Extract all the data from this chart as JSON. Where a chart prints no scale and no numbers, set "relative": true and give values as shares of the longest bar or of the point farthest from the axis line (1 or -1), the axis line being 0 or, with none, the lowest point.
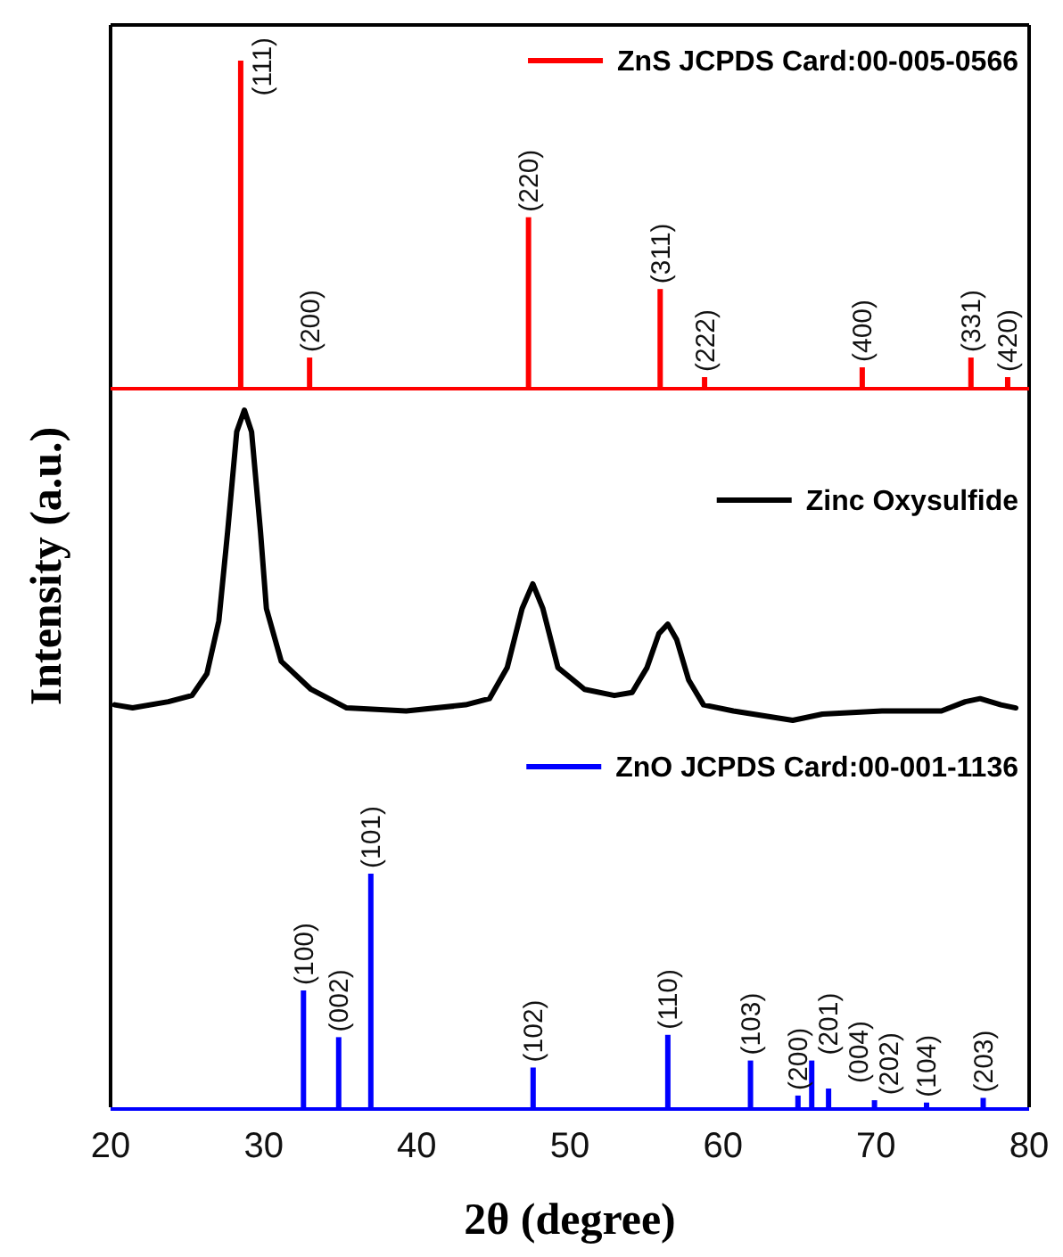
{
  "chart_data": [
    {
      "type": "bar",
      "relative": true,
      "xlim": [
        20,
        80
      ],
      "tick_labels": false,
      "legend": "top right",
      "x": [
        28.5,
        33.0,
        47.3,
        55.9,
        58.8,
        69.1,
        76.2,
        78.6
      ],
      "series": [
        {
          "name": "ZnS JCPDS Card:00-005-0566",
          "color": "#ff0000",
          "values": [
            1,
            0.09,
            0.52,
            0.3,
            0.03,
            0.06,
            0.09,
            0.03
          ]
        }
      ],
      "annotations": [
        {
          "text": "(111)",
          "x": 28.5,
          "y": 1
        },
        {
          "text": "(200)",
          "x": 33.0,
          "y": 0.09
        },
        {
          "text": "(220)",
          "x": 47.3,
          "y": 0.52
        },
        {
          "text": "(311)",
          "x": 55.9,
          "y": 0.3
        },
        {
          "text": "(222)",
          "x": 58.8,
          "y": 0.03
        },
        {
          "text": "(400)",
          "x": 69.1,
          "y": 0.06
        },
        {
          "text": "(331)",
          "x": 76.2,
          "y": 0.09
        },
        {
          "text": "(420)",
          "x": 78.6,
          "y": 0.03
        }
      ]
    },
    {
      "type": "line",
      "relative": true,
      "xlim": [
        20,
        80
      ],
      "tick_labels": false,
      "legend": "right",
      "ylabel": "Intensity (a.u.)",
      "series": [
        {
          "name": "Zinc Oxysulfide",
          "color": "#000000",
          "x": [
            20.27,
            21.44,
            23.77,
            25.32,
            26.29,
            27.07,
            27.65,
            28.24,
            28.74,
            29.21,
            29.79,
            30.18,
            31.15,
            33.09,
            35.42,
            39.31,
            43.19,
            44.75,
            45.91,
            46.88,
            47.58,
            48.24,
            49.22,
            50.96,
            52.91,
            54.07,
            55.04,
            55.82,
            56.4,
            56.98,
            57.76,
            58.73,
            60.68,
            64.56,
            66.5,
            70.39,
            74.27,
            75.83,
            76.8,
            78.16,
            79.13
          ],
          "values": [
            0.05,
            0.04,
            0.06,
            0.08,
            0.15,
            0.32,
            0.61,
            0.93,
            1,
            0.93,
            0.61,
            0.36,
            0.19,
            0.1,
            0.04,
            0.03,
            0.05,
            0.07,
            0.17,
            0.36,
            0.44,
            0.36,
            0.17,
            0.1,
            0.08,
            0.09,
            0.17,
            0.28,
            0.31,
            0.26,
            0.13,
            0.05,
            0.03,
            0,
            0.02,
            0.03,
            0.03,
            0.06,
            0.07,
            0.05,
            0.04
          ]
        }
      ]
    },
    {
      "type": "bar",
      "relative": true,
      "xlim": [
        20,
        80
      ],
      "xticks": [
        20,
        30,
        40,
        50,
        60,
        70,
        80
      ],
      "tick_labels": "x",
      "legend": "top right",
      "xlabel": "2θ (degree)",
      "x": [
        32.6,
        34.9,
        37.0,
        47.6,
        56.4,
        61.8,
        64.9,
        65.8,
        66.9,
        69.9,
        73.3,
        77.0
      ],
      "series": [
        {
          "name": "ZnO JCPDS Card:00-001-1136",
          "color": "#0000ff",
          "values": [
            0.5,
            0.3,
            1,
            0.17,
            0.31,
            0.2,
            0.05,
            0.2,
            0.08,
            0.03,
            0.02,
            0.04
          ]
        }
      ],
      "annotations": [
        {
          "text": "(100)",
          "x": 32.6,
          "y": 0.5
        },
        {
          "text": "(002)",
          "x": 34.9,
          "y": 0.3
        },
        {
          "text": "(101)",
          "x": 37.0,
          "y": 1
        },
        {
          "text": "(102)",
          "x": 47.6,
          "y": 0.17
        },
        {
          "text": "(110)",
          "x": 56.4,
          "y": 0.31
        },
        {
          "text": "(103)",
          "x": 61.8,
          "y": 0.2
        },
        {
          "text": "(200)",
          "x": 64.9,
          "y": 0.05
        },
        {
          "text": "(201)",
          "x": 65.8,
          "y": 0.2
        },
        {
          "text": "(004)",
          "x": 66.9,
          "y": 0.08
        },
        {
          "text": "(202)",
          "x": 69.9,
          "y": 0.03
        },
        {
          "text": "(104)",
          "x": 73.3,
          "y": 0.02
        },
        {
          "text": "(203)",
          "x": 77.0,
          "y": 0.04
        }
      ]
    }
  ]
}
